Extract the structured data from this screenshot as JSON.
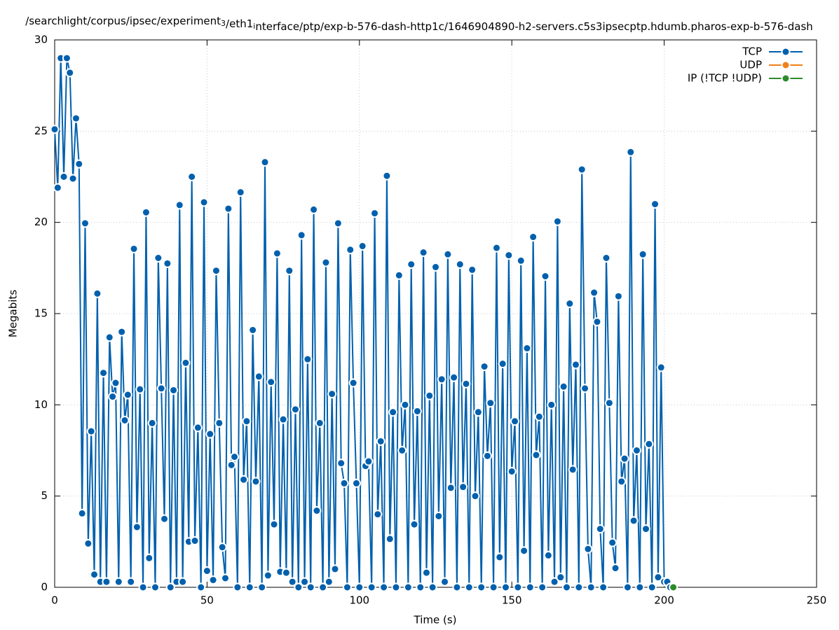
{
  "chart_data": {
    "type": "line",
    "title": "/searchlight/corpus/ipsec/experiment_3/eth1_interface/ptp/exp-b-576-dash-http1c/1646904890-h2-servers.c5s3ipsecptp.hdumb.pharos-exp-b-576-dash",
    "x_label": "Time (s)",
    "y_label": "Megabits",
    "xlim": [
      0,
      250
    ],
    "xticks": [
      0,
      50,
      100,
      150,
      200,
      250
    ],
    "ylim": [
      0,
      30
    ],
    "yticks": [
      0,
      5,
      10,
      15,
      20,
      25,
      30
    ],
    "grid": true,
    "legend": "top-right",
    "series": [
      {
        "name": "TCP",
        "color": "#0060ad",
        "x": [
          0,
          1,
          2,
          3,
          4,
          5,
          6,
          7,
          8,
          9,
          10,
          11,
          12,
          13,
          14,
          15,
          16,
          17,
          18,
          19,
          20,
          21,
          22,
          23,
          24,
          25,
          26,
          27,
          28,
          29,
          30,
          31,
          32,
          33,
          34,
          35,
          36,
          37,
          38,
          39,
          40,
          41,
          42,
          43,
          44,
          45,
          46,
          47,
          48,
          49,
          50,
          51,
          52,
          53,
          54,
          55,
          56,
          57,
          58,
          59,
          60,
          61,
          62,
          63,
          64,
          65,
          66,
          67,
          68,
          69,
          70,
          71,
          72,
          73,
          74,
          75,
          76,
          77,
          78,
          79,
          80,
          81,
          82,
          83,
          84,
          85,
          86,
          87,
          88,
          89,
          90,
          91,
          92,
          93,
          94,
          95,
          96,
          97,
          98,
          99,
          100,
          101,
          102,
          103,
          104,
          105,
          106,
          107,
          108,
          109,
          110,
          111,
          112,
          113,
          114,
          115,
          116,
          117,
          118,
          119,
          120,
          121,
          122,
          123,
          124,
          125,
          126,
          127,
          128,
          129,
          130,
          131,
          132,
          133,
          134,
          135,
          136,
          137,
          138,
          139,
          140,
          141,
          142,
          143,
          144,
          145,
          146,
          147,
          148,
          149,
          150,
          151,
          152,
          153,
          154,
          155,
          156,
          157,
          158,
          159,
          160,
          161,
          162,
          163,
          164,
          165,
          166,
          167,
          168,
          169,
          170,
          171,
          172,
          173,
          174,
          175,
          176,
          177,
          178,
          179,
          180,
          181,
          182,
          183,
          184,
          185,
          186,
          187,
          188,
          189,
          190,
          191,
          192,
          193,
          194,
          195,
          196,
          197,
          198,
          199,
          200,
          201,
          202
        ],
        "values": [
          25.1,
          21.9,
          29.0,
          22.5,
          29.0,
          28.2,
          22.4,
          25.7,
          23.2,
          4.05,
          19.95,
          2.4,
          8.55,
          0.7,
          16.1,
          0.3,
          11.75,
          0.3,
          13.7,
          10.45,
          11.2,
          0.3,
          14.0,
          9.15,
          10.55,
          0.3,
          18.55,
          3.3,
          10.85,
          0,
          20.55,
          1.6,
          9.0,
          0,
          18.05,
          10.9,
          3.75,
          17.75,
          0,
          10.8,
          0.3,
          20.95,
          0.3,
          12.3,
          2.5,
          22.5,
          2.55,
          8.75,
          0,
          21.1,
          0.9,
          8.4,
          0.4,
          17.35,
          9.0,
          2.2,
          0.5,
          20.75,
          6.7,
          7.15,
          0,
          21.65,
          5.9,
          9.1,
          0,
          14.1,
          5.8,
          11.55,
          0,
          23.3,
          0.65,
          11.25,
          3.45,
          18.3,
          0.85,
          9.2,
          0.8,
          17.35,
          0.3,
          9.75,
          0,
          19.3,
          0.3,
          12.5,
          0,
          20.7,
          4.2,
          9.0,
          0,
          17.8,
          0.3,
          10.6,
          1.0,
          19.95,
          6.8,
          5.7,
          0,
          18.5,
          11.2,
          5.7,
          0,
          18.7,
          6.65,
          6.9,
          0,
          20.5,
          4.0,
          8.0,
          0,
          22.55,
          2.65,
          9.6,
          0,
          17.1,
          7.5,
          10.0,
          0,
          17.7,
          3.45,
          9.65,
          0,
          18.35,
          0.8,
          10.5,
          0,
          17.55,
          3.9,
          11.4,
          0.3,
          18.25,
          5.45,
          11.5,
          0,
          17.7,
          5.5,
          11.15,
          0,
          17.4,
          5.0,
          9.6,
          0,
          12.1,
          7.2,
          10.1,
          0,
          18.6,
          1.65,
          12.25,
          0,
          18.2,
          6.35,
          9.1,
          0,
          17.9,
          2.0,
          13.1,
          0,
          19.2,
          7.25,
          9.35,
          0,
          17.05,
          1.75,
          10.0,
          0.3,
          20.05,
          0.55,
          11.0,
          0,
          15.55,
          6.45,
          12.2,
          0,
          22.9,
          10.9,
          2.1,
          0,
          16.15,
          14.55,
          3.2,
          0,
          18.05,
          10.1,
          2.45,
          1.05,
          15.95,
          5.8,
          7.05,
          0,
          23.85,
          3.65,
          7.5,
          0,
          18.25,
          3.2,
          7.85,
          0,
          21.0,
          0.55,
          12.05,
          0.3,
          0.3,
          0
        ]
      },
      {
        "name": "UDP",
        "color": "#f0801a",
        "x": [],
        "values": []
      },
      {
        "name": "IP (!TCP  !UDP)",
        "color": "#2c8c2c",
        "x": [
          203
        ],
        "values": [
          0
        ]
      }
    ]
  }
}
